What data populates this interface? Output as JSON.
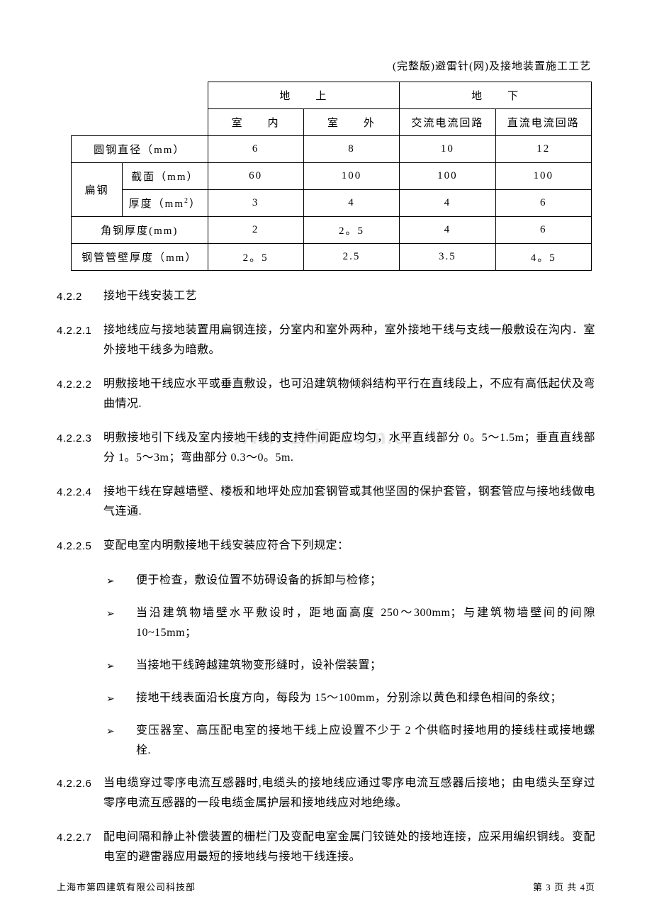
{
  "header": "(完整版)避雷针(网)及接地装置施工工艺",
  "watermark": "www.zxin.com.cn",
  "table": {
    "col_widths": [
      "72px",
      "120px",
      "118px",
      "118px",
      "118px",
      "118px"
    ],
    "h1": {
      "above": "地　　上",
      "below": "地　　下"
    },
    "h2": {
      "c1": "室　　内",
      "c2": "室　　外",
      "c3": "交流电流回路",
      "c4": "直流电流回路"
    },
    "rows": [
      {
        "label": "圆钢直径（mm）",
        "span": 2,
        "v": [
          "6",
          "8",
          "10",
          "12"
        ]
      },
      {
        "group": "扁钢",
        "sub": "截面（mm）",
        "v": [
          "60",
          "100",
          "100",
          "100"
        ]
      },
      {
        "group_cont": true,
        "sub": "厚度（mm<span class=\"sup\">2</span>）",
        "v": [
          "3",
          "4",
          "4",
          "6"
        ]
      },
      {
        "label": "角钢厚度(mm)",
        "span": 2,
        "v": [
          "2",
          "2。5",
          "4",
          "6"
        ]
      },
      {
        "label": "钢管管壁厚度（mm）",
        "span": 2,
        "v": [
          "2。5",
          "2.5",
          "3.5",
          "4。5"
        ]
      }
    ]
  },
  "sections": [
    {
      "num": "4.2.2",
      "text": "接地干线安装工艺"
    },
    {
      "num": "4.2.2.1",
      "text": "接地线应与接地装置用扁钢连接，分室内和室外两种，室外接地干线与支线一般敷设在沟内．室外接地干线多为暗敷。"
    },
    {
      "num": "4.2.2.2",
      "text": "明敷接地干线应水平或垂直敷设，也可沿建筑物倾斜结构平行在直线段上，不应有高低起伏及弯曲情况."
    },
    {
      "num": "4.2.2.3",
      "text": "明敷接地引下线及室内接地干线的支持件间距应均匀，水平直线部分 0。5～1.5m；垂直直线部分 1。5～3m；弯曲部分 0.3～0。5m."
    },
    {
      "num": "4.2.2.4",
      "text": "接地干线在穿越墙壁、楼板和地坪处应加套钢管或其他坚固的保护套管，钢套管应与接地线做电气连通."
    },
    {
      "num": "4.2.2.5",
      "text": "变配电室内明敷接地干线安装应符合下列规定："
    }
  ],
  "bullets": [
    "便于检查，敷设位置不妨碍设备的拆卸与检修；",
    "当沿建筑物墙壁水平敷设时，距地面高度 250～300mm；与建筑物墙壁间的间隙10~15mm；",
    "当接地干线跨越建筑物变形缝时，设补偿装置；",
    "接地干线表面沿长度方向，每段为 15～100mm，分别涂以黄色和绿色相间的条纹；",
    "变压器室、高压配电室的接地干线上应设置不少于 2 个供临时接地用的接线柱或接地螺栓."
  ],
  "sections_after": [
    {
      "num": "4.2.2.6",
      "text": "当电缆穿过零序电流互感器时,电缆头的接地线应通过零序电流互感器后接地；由电缆头至穿过零序电流互感器的一段电缆金属护层和接地线应对地绝缘。"
    },
    {
      "num": "4.2.2.7",
      "text": "配电间隔和静止补偿装置的栅栏门及变配电室金属门铰链处的接地连接，应采用编织铜线。变配电室的避雷器应用最短的接地线与接地干线连接。"
    }
  ],
  "footer": {
    "left": "上海市第四建筑有限公司科技部",
    "right": "第 3 页 共 4页"
  }
}
